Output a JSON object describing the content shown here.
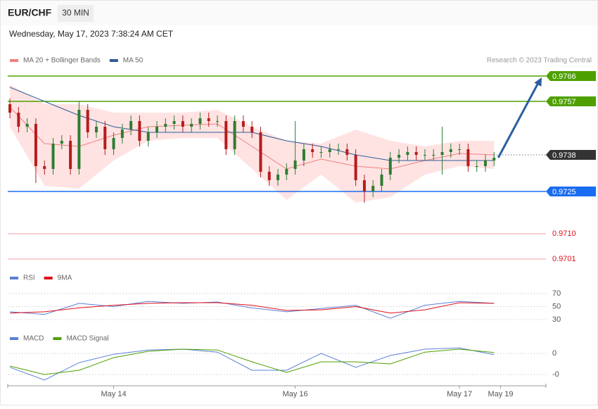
{
  "chart_data": {
    "type": "candlestick",
    "title": "EUR/CHF",
    "timeframe": "30 MIN",
    "subtitle": "Wednesday, May 17, 2023 7:38:24 AM CET",
    "attribution": "Research © 2023 Trading Central",
    "xlim": [
      -0.25,
      62
    ],
    "xticks": [
      {
        "value": 12,
        "label": "May 14"
      },
      {
        "value": 33,
        "label": "May 16"
      },
      {
        "value": 52,
        "label": "May 17"
      },
      {
        "value": 56.75,
        "label": "May 19"
      }
    ],
    "ylim": [
      0.9698,
      0.977
    ],
    "up_color": "#2e7d32",
    "down_color": "#b71c1c",
    "candles": {
      "open": [
        0.9756,
        0.9753,
        0.9748,
        0.9749,
        0.9734,
        0.9733,
        0.9742,
        0.9743,
        0.9733,
        0.9754,
        0.9746,
        0.9748,
        0.974,
        0.9744,
        0.9747,
        0.975,
        0.9743,
        0.9746,
        0.9748,
        0.9749,
        0.975,
        0.9748,
        0.9749,
        0.9751,
        0.975,
        0.975,
        0.974,
        0.975,
        0.9748,
        0.9746,
        0.9732,
        0.9729,
        0.9731,
        0.9733,
        0.9736,
        0.974,
        0.9739,
        0.9739,
        0.974,
        0.974,
        0.9738,
        0.9729,
        0.9725,
        0.9727,
        0.9731,
        0.9737,
        0.9738,
        0.9739,
        0.9738,
        0.9738,
        0.9738,
        0.9739,
        0.974,
        0.974,
        0.9734,
        0.9734,
        0.9736
      ],
      "high": [
        0.9758,
        0.9755,
        0.9751,
        0.9751,
        0.9736,
        0.9744,
        0.9745,
        0.9745,
        0.9757,
        0.9756,
        0.975,
        0.975,
        0.9746,
        0.9749,
        0.9752,
        0.9752,
        0.9748,
        0.975,
        0.9751,
        0.9752,
        0.9752,
        0.9751,
        0.9753,
        0.9753,
        0.9752,
        0.9752,
        0.9752,
        0.9752,
        0.975,
        0.9748,
        0.9734,
        0.9733,
        0.9735,
        0.975,
        0.9742,
        0.9742,
        0.9741,
        0.9742,
        0.9742,
        0.9742,
        0.974,
        0.9731,
        0.9729,
        0.9733,
        0.9739,
        0.974,
        0.9741,
        0.9741,
        0.974,
        0.974,
        0.9748,
        0.9742,
        0.9742,
        0.9742,
        0.9736,
        0.9738,
        0.9739
      ],
      "low": [
        0.9751,
        0.9746,
        0.9746,
        0.9728,
        0.9731,
        0.9731,
        0.974,
        0.9731,
        0.9731,
        0.9744,
        0.9744,
        0.9738,
        0.9738,
        0.9742,
        0.9745,
        0.9741,
        0.9741,
        0.9744,
        0.9746,
        0.9747,
        0.9746,
        0.9746,
        0.9747,
        0.9748,
        0.9748,
        0.9738,
        0.9738,
        0.9746,
        0.9744,
        0.973,
        0.9727,
        0.9727,
        0.9729,
        0.9731,
        0.9734,
        0.9737,
        0.9737,
        0.9737,
        0.9738,
        0.9736,
        0.9727,
        0.9721,
        0.9723,
        0.9725,
        0.9729,
        0.9735,
        0.9736,
        0.9736,
        0.9736,
        0.9736,
        0.9731,
        0.9737,
        0.9738,
        0.9732,
        0.9732,
        0.9732,
        0.9734
      ],
      "close": [
        0.9753,
        0.9748,
        0.9749,
        0.9734,
        0.9733,
        0.9742,
        0.9743,
        0.9733,
        0.9754,
        0.9746,
        0.9748,
        0.974,
        0.9744,
        0.9747,
        0.975,
        0.9743,
        0.9746,
        0.9748,
        0.9749,
        0.975,
        0.9748,
        0.9749,
        0.9751,
        0.975,
        0.975,
        0.974,
        0.975,
        0.9748,
        0.9746,
        0.9732,
        0.9729,
        0.9731,
        0.9733,
        0.9736,
        0.974,
        0.9739,
        0.9739,
        0.974,
        0.974,
        0.9738,
        0.9729,
        0.9725,
        0.9727,
        0.9731,
        0.9737,
        0.9738,
        0.9739,
        0.9738,
        0.9738,
        0.9738,
        0.9739,
        0.974,
        0.974,
        0.9734,
        0.9734,
        0.9736,
        0.9737
      ]
    },
    "sample_index": [
      0,
      4,
      8,
      12,
      16,
      20,
      24,
      28,
      32,
      36,
      40,
      44,
      48,
      52,
      56
    ],
    "series": [
      {
        "name": "MA 20 + Bollinger Bands",
        "color": "#f08080",
        "values": [
          0.9755,
          0.9742,
          0.9741,
          0.9745,
          0.9748,
          0.97485,
          0.9749,
          0.9741,
          0.9733,
          0.97365,
          0.9734,
          0.9733,
          0.9736,
          0.97385,
          0.9738
        ],
        "upper": [
          0.9763,
          0.9756,
          0.9756,
          0.9753,
          0.9753,
          0.9753,
          0.9754,
          0.9748,
          0.9743,
          0.9742,
          0.9747,
          0.9743,
          0.9741,
          0.9743,
          0.9743
        ],
        "lower": [
          0.9748,
          0.9727,
          0.9726,
          0.9736,
          0.9743,
          0.9744,
          0.9744,
          0.9733,
          0.9722,
          0.9731,
          0.9721,
          0.9723,
          0.9731,
          0.9734,
          0.9733
        ]
      },
      {
        "name": "MA 50",
        "color": "#2e5c99",
        "values": [
          0.9762,
          0.9757,
          0.9752,
          0.9748,
          0.9746,
          0.9746,
          0.9746,
          0.9746,
          0.9743,
          0.9741,
          0.9738,
          0.9736,
          0.9736,
          0.9736,
          0.9736
        ]
      }
    ],
    "levels": [
      {
        "price": 0.9766,
        "color": "#4ea000",
        "box": true,
        "dotted": false
      },
      {
        "price": 0.9757,
        "color": "#4ea000",
        "box": true,
        "dotted": false
      },
      {
        "price": 0.9738,
        "color": "#333333",
        "box": true,
        "dotted": true
      },
      {
        "price": 0.9725,
        "color": "#1a6cf0",
        "box": true,
        "dotted": false
      },
      {
        "price": 0.971,
        "label": "0.9710",
        "color": "#e0101a",
        "box": false,
        "dotted": false
      },
      {
        "price": 0.9701,
        "color": "#e0101a",
        "box": false,
        "dotted": false
      }
    ],
    "arrow_color": "#2b5f9e",
    "panels": [
      {
        "ylim": [
          20,
          80
        ],
        "yticks": [
          30,
          50,
          70
        ],
        "series": [
          {
            "name": "RSI",
            "color": "#5b7fd6",
            "values": [
              42,
              38,
              55,
              50,
              58,
              55,
              57,
              48,
              42,
              47,
              52,
              32,
              52,
              58,
              55
            ]
          },
          {
            "name": "9MA",
            "color": "#e0101a",
            "values": [
              40,
              42,
              48,
              52,
              55,
              56,
              56,
              52,
              44,
              45,
              50,
              40,
              45,
              56,
              55
            ]
          }
        ]
      },
      {
        "ylim": [
          -0.0007,
          0.0002
        ],
        "yticks": [
          0,
          {
            "value": -0.0005,
            "label": "-0"
          }
        ],
        "series": [
          {
            "name": "MACD",
            "color": "#5b7fd6",
            "values": [
              -0.00033,
              -0.00063,
              -0.00022,
              -2e-05,
              8e-05,
              0.0001,
              3e-05,
              -0.0004,
              -0.0004,
              0,
              -0.00033,
              -5e-05,
              0.0001,
              0.00013,
              -3e-05
            ]
          },
          {
            "name": "MACD Signal",
            "color": "#4ea000",
            "values": [
              -0.0003,
              -0.0005,
              -0.0004,
              -0.0001,
              5e-05,
              0.0001,
              8e-05,
              -0.0002,
              -0.00045,
              -0.0002,
              -0.0002,
              -0.00025,
              3e-05,
              0.0001,
              2e-05
            ]
          }
        ]
      }
    ]
  }
}
